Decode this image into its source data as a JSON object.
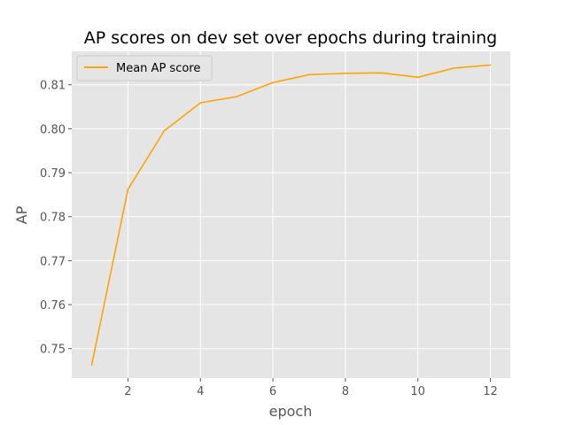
{
  "chart_data": {
    "type": "line",
    "title": "AP scores on dev set over epochs during training",
    "xlabel": "epoch",
    "ylabel": "AP",
    "xlim": [
      0.45,
      12.55
    ],
    "ylim": [
      0.7433,
      0.8176
    ],
    "x_ticks": [
      2,
      4,
      6,
      8,
      10,
      12
    ],
    "x_tick_labels": [
      "2",
      "4",
      "6",
      "8",
      "10",
      "12"
    ],
    "y_ticks": [
      0.75,
      0.76,
      0.77,
      0.78,
      0.79,
      0.8,
      0.81
    ],
    "y_tick_labels": [
      "0.75",
      "0.76",
      "0.77",
      "0.78",
      "0.79",
      "0.80",
      "0.81"
    ],
    "grid": true,
    "legend_position": "top-left",
    "background_color": "#e5e5e5",
    "grid_color": "#ffffff",
    "series": [
      {
        "name": "Mean AP score",
        "color": "#ffa500",
        "x": [
          1,
          2,
          3,
          4,
          5,
          6,
          7,
          8,
          9,
          10,
          11,
          12
        ],
        "y": [
          0.7463,
          0.7862,
          0.7995,
          0.8059,
          0.8073,
          0.8105,
          0.8123,
          0.8126,
          0.8127,
          0.8117,
          0.8138,
          0.8145
        ]
      }
    ]
  }
}
